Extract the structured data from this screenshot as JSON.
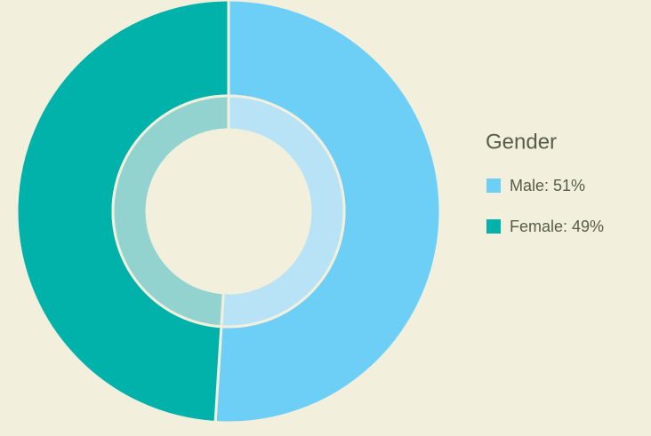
{
  "chart_data": {
    "type": "donut",
    "title": "Gender",
    "categories": [
      "Male: 51%",
      "Female: 49%"
    ],
    "values": [
      51,
      49
    ],
    "colors": [
      "#6dcff6",
      "#00b2a9"
    ],
    "inner_colors": [
      "#b8e3f6",
      "#93d3cf"
    ]
  }
}
